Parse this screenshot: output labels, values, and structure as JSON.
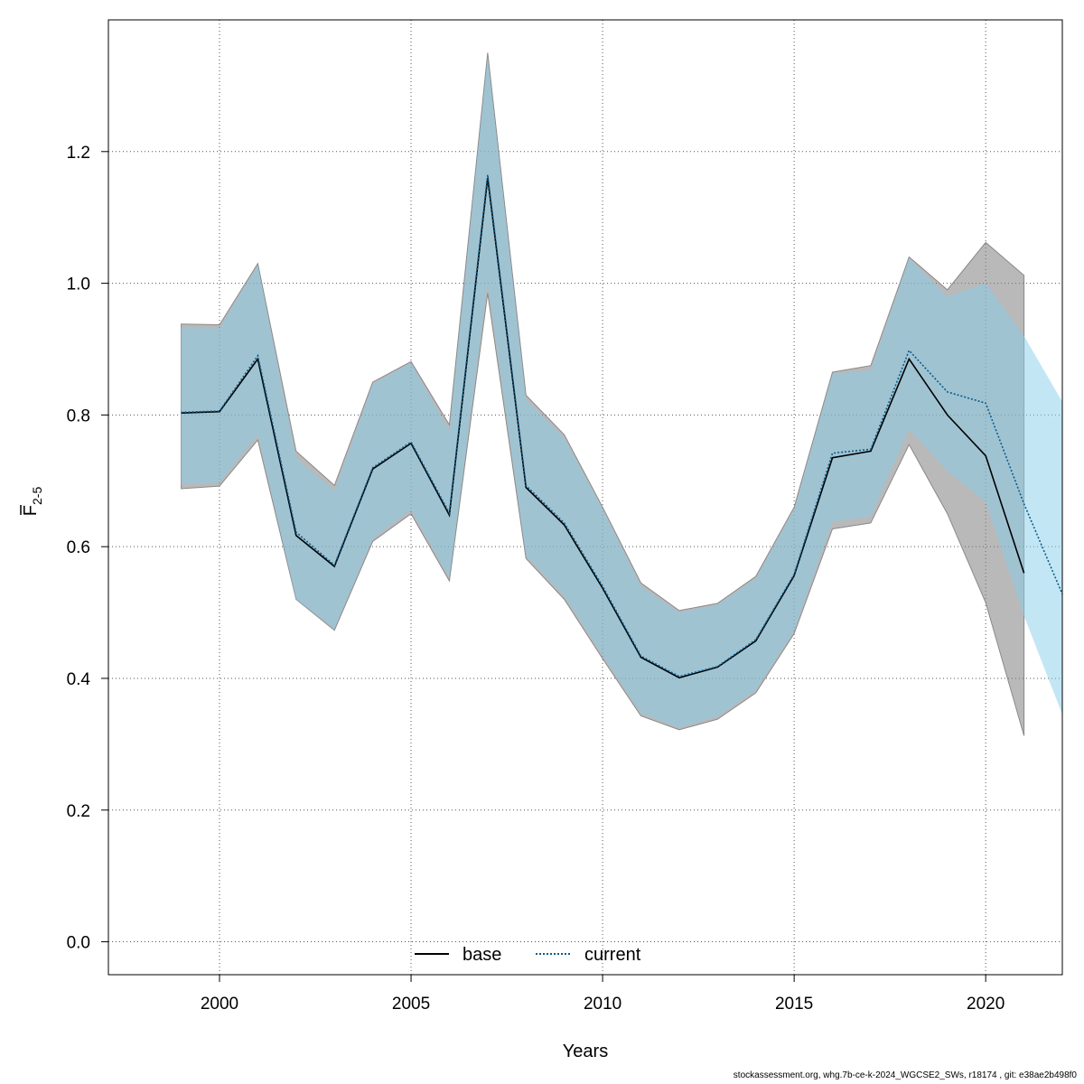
{
  "chart_data": {
    "type": "line",
    "xlabel": "Years",
    "ylabel": {
      "main": "F",
      "subscript": "2-5"
    },
    "xlim": [
      1997.1,
      2022.0
    ],
    "ylim": [
      -0.05,
      1.4
    ],
    "x_ticks": [
      2000,
      2005,
      2010,
      2015,
      2020
    ],
    "y_ticks": [
      0.0,
      0.2,
      0.4,
      0.6,
      0.8,
      1.0,
      1.2
    ],
    "y_tick_labels": [
      "0.0",
      "0.2",
      "0.4",
      "0.6",
      "0.8",
      "1.0",
      "1.2"
    ],
    "grid": true,
    "legend_position": "bottom",
    "series": [
      {
        "name": "base",
        "style": "solid",
        "color": "#000000",
        "band_color": "#808080",
        "x": [
          1999,
          2000,
          2001,
          2002,
          2003,
          2004,
          2005,
          2006,
          2007,
          2008,
          2009,
          2010,
          2011,
          2012,
          2013,
          2014,
          2015,
          2016,
          2017,
          2018,
          2019,
          2020,
          2021
        ],
        "values": [
          0.803,
          0.805,
          0.885,
          0.617,
          0.57,
          0.718,
          0.757,
          0.648,
          1.16,
          0.69,
          0.633,
          0.537,
          0.432,
          0.401,
          0.417,
          0.457,
          0.556,
          0.735,
          0.745,
          0.885,
          0.8,
          0.738,
          0.56
        ],
        "lower": [
          0.688,
          0.692,
          0.762,
          0.52,
          0.473,
          0.608,
          0.65,
          0.548,
          0.985,
          0.582,
          0.52,
          0.43,
          0.343,
          0.322,
          0.338,
          0.378,
          0.468,
          0.627,
          0.636,
          0.755,
          0.65,
          0.515,
          0.313
        ],
        "upper": [
          0.938,
          0.937,
          1.03,
          0.745,
          0.693,
          0.85,
          0.881,
          0.785,
          1.35,
          0.83,
          0.77,
          0.66,
          0.545,
          0.503,
          0.514,
          0.555,
          0.66,
          0.865,
          0.875,
          1.04,
          0.99,
          1.062,
          1.012
        ]
      },
      {
        "name": "current",
        "style": "dotted",
        "color": "#0a5d8a",
        "band_color": "#87ceeb",
        "x": [
          1999,
          2000,
          2001,
          2002,
          2003,
          2004,
          2005,
          2006,
          2007,
          2008,
          2009,
          2010,
          2011,
          2012,
          2013,
          2014,
          2015,
          2016,
          2017,
          2018,
          2019,
          2020,
          2021,
          2022
        ],
        "values": [
          0.804,
          0.806,
          0.89,
          0.622,
          0.572,
          0.72,
          0.759,
          0.651,
          1.165,
          0.693,
          0.636,
          0.54,
          0.434,
          0.403,
          0.418,
          0.459,
          0.558,
          0.742,
          0.748,
          0.898,
          0.835,
          0.818,
          0.665,
          0.528
        ],
        "lower": [
          0.695,
          0.697,
          0.77,
          0.52,
          0.475,
          0.612,
          0.656,
          0.552,
          1.0,
          0.587,
          0.525,
          0.434,
          0.347,
          0.325,
          0.342,
          0.382,
          0.472,
          0.638,
          0.646,
          0.778,
          0.715,
          0.668,
          0.495,
          0.345
        ],
        "upper": [
          0.932,
          0.932,
          1.028,
          0.735,
          0.685,
          0.847,
          0.879,
          0.775,
          1.345,
          0.823,
          0.765,
          0.657,
          0.54,
          0.5,
          0.512,
          0.552,
          0.657,
          0.862,
          0.868,
          1.038,
          0.98,
          1.0,
          0.92,
          0.82
        ]
      }
    ],
    "legend": [
      {
        "label": "base",
        "style": "solid",
        "color": "#000000"
      },
      {
        "label": "current",
        "style": "dotted",
        "color": "#0a5d8a"
      }
    ]
  },
  "footer": "stockassessment.org, whg.7b-ce-k-2024_WGCSE2_SWs, r18174 , git: e38ae2b498f0"
}
